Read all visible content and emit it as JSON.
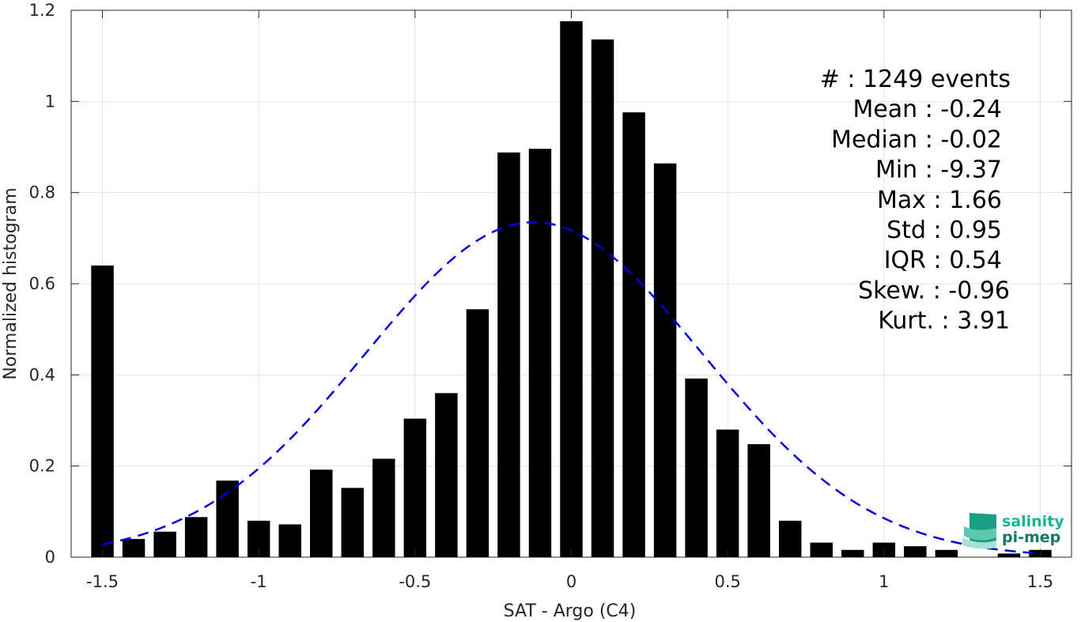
{
  "chart_data": {
    "type": "bar",
    "xlabel": "SAT - Argo (C4)",
    "ylabel": "Normalized histogram",
    "xlim": [
      -1.6,
      1.6
    ],
    "ylim": [
      0,
      1.2
    ],
    "grid": true,
    "x_ticks": [
      -1.5,
      -1,
      -0.5,
      0,
      0.5,
      1,
      1.5
    ],
    "x_tick_labels": [
      "-1.5",
      "-1",
      "-0.5",
      "0",
      "0.5",
      "1",
      "1.5"
    ],
    "y_ticks": [
      0,
      0.2,
      0.4,
      0.6,
      0.8,
      1,
      1.2
    ],
    "y_tick_labels": [
      "0",
      "0.2",
      "0.4",
      "0.6",
      "0.8",
      "1",
      "1.2"
    ],
    "bin_width": 0.1,
    "x": [
      -1.5,
      -1.4,
      -1.3,
      -1.2,
      -1.1,
      -1.0,
      -0.9,
      -0.8,
      -0.7,
      -0.6,
      -0.5,
      -0.4,
      -0.3,
      -0.2,
      -0.1,
      0.0,
      0.1,
      0.2,
      0.3,
      0.4,
      0.5,
      0.6,
      0.7,
      0.8,
      0.9,
      1.0,
      1.1,
      1.2,
      1.3,
      1.4,
      1.5
    ],
    "values": [
      0.64,
      0.04,
      0.056,
      0.088,
      0.168,
      0.08,
      0.072,
      0.192,
      0.152,
      0.216,
      0.304,
      0.36,
      0.544,
      0.888,
      0.896,
      1.176,
      1.136,
      0.976,
      0.864,
      0.392,
      0.28,
      0.248,
      0.08,
      0.032,
      0.016,
      0.032,
      0.024,
      0.016,
      0.0,
      0.008,
      0.016
    ],
    "fit_curve": {
      "style": "dashed",
      "color": "#0000dd",
      "mean": -0.12,
      "std": 0.54,
      "peak": 0.735,
      "x_range": [
        -1.5,
        1.5
      ]
    },
    "bar_color": "#000000",
    "stats_box": {
      "placement": "top-right",
      "lines": [
        "#  : 1249 events",
        "Mean : -0.24",
        "Median : -0.02",
        "Min : -9.37",
        "Max : 1.66",
        "Std : 0.95",
        "IQR : 0.54",
        "Skew. : -0.96",
        "Kurt. : 3.91"
      ]
    }
  },
  "logo": {
    "line1": "salinity",
    "line2": "pi-mep",
    "color1": "#1bb394",
    "color2": "#127a66"
  }
}
